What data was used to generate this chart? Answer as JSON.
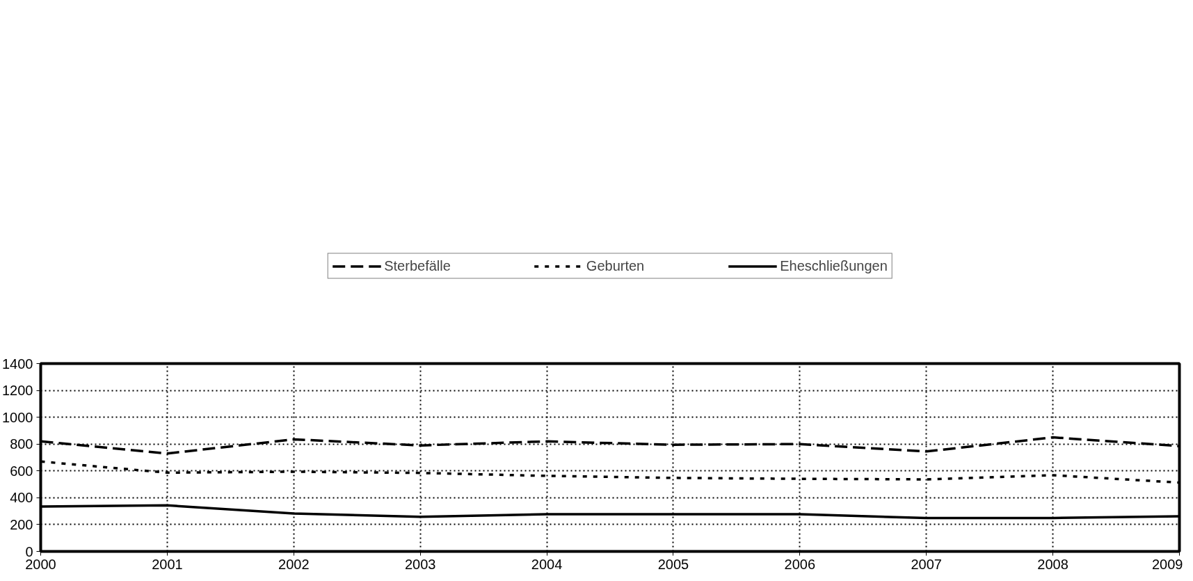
{
  "chart_data": {
    "type": "line",
    "x": [
      2000,
      2001,
      2002,
      2003,
      2004,
      2005,
      2006,
      2007,
      2008,
      2009
    ],
    "xlim": [
      2000,
      2009
    ],
    "xticks": [
      2000,
      2001,
      2002,
      2003,
      2004,
      2005,
      2006,
      2007,
      2008,
      2009
    ],
    "ylim": [
      0,
      1400
    ],
    "yticks": [
      0,
      200,
      400,
      600,
      800,
      1000,
      1200,
      1400
    ],
    "grid": true,
    "legend": "top",
    "marker": "none",
    "series": [
      {
        "name": "Sterbefälle",
        "color": "#000000",
        "line_style": "dashed",
        "values": [
          820,
          730,
          835,
          790,
          820,
          795,
          800,
          745,
          850,
          785
        ]
      },
      {
        "name": "Geburten",
        "color": "#000000",
        "line_style": "dotted",
        "values": [
          670,
          587,
          594,
          585,
          563,
          548,
          541,
          537,
          568,
          513
        ]
      },
      {
        "name": "Eheschließungen",
        "color": "#000000",
        "line_style": "solid",
        "values": [
          334,
          343,
          282,
          258,
          277,
          277,
          277,
          249,
          249,
          262
        ]
      }
    ]
  }
}
